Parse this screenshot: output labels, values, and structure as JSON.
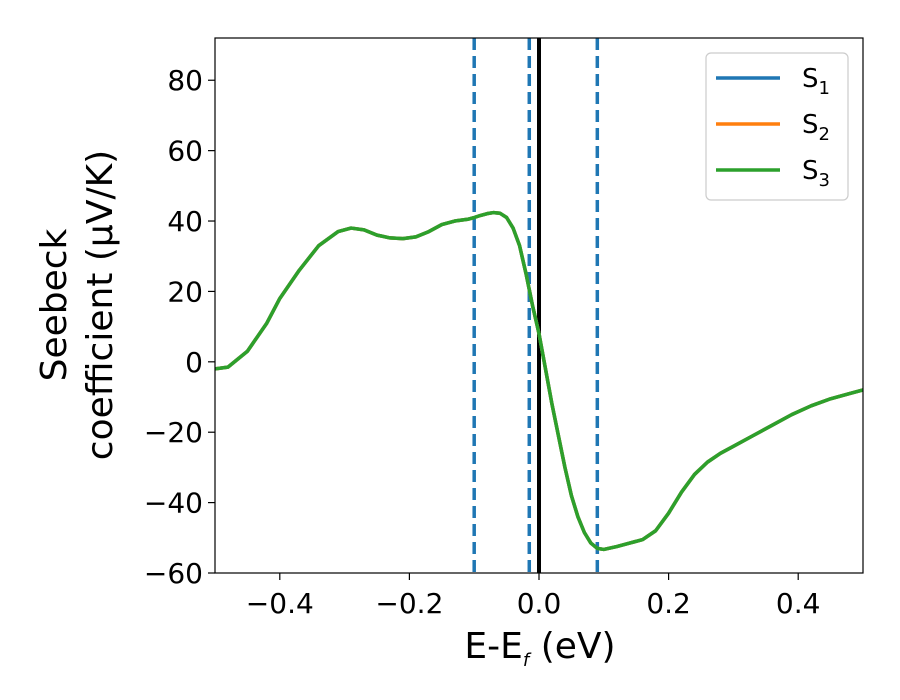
{
  "chart_data": {
    "type": "line",
    "xlabel_main": "E-E",
    "xlabel_sub": "f",
    "xlabel_unit": " (eV)",
    "ylabel_line1": "Seebeck",
    "ylabel_line2": "coefficient  (μV/K)",
    "xlim": [
      -0.5,
      0.5
    ],
    "ylim": [
      -60,
      92
    ],
    "x_ticks": [
      -0.4,
      -0.2,
      0.0,
      0.2,
      0.4
    ],
    "x_tick_labels": [
      "−0.4",
      "−0.2",
      "0.0",
      "0.2",
      "0.4"
    ],
    "y_ticks": [
      -60,
      -40,
      -20,
      0,
      20,
      40,
      60,
      80
    ],
    "y_tick_labels": [
      "−60",
      "−40",
      "−20",
      "0",
      "20",
      "40",
      "60",
      "80"
    ],
    "grid": false,
    "legend_position": "top-right",
    "series": [
      {
        "name": "S",
        "sub": "1",
        "color": "#1f77b4",
        "x": [
          -0.5,
          -0.48,
          -0.45,
          -0.42,
          -0.4,
          -0.37,
          -0.34,
          -0.31,
          -0.29,
          -0.27,
          -0.25,
          -0.23,
          -0.21,
          -0.19,
          -0.17,
          -0.15,
          -0.13,
          -0.11,
          -0.1,
          -0.09,
          -0.08,
          -0.07,
          -0.06,
          -0.05,
          -0.04,
          -0.03,
          -0.02,
          -0.01,
          0.0,
          0.01,
          0.02,
          0.03,
          0.04,
          0.05,
          0.06,
          0.07,
          0.08,
          0.09,
          0.1,
          0.12,
          0.14,
          0.16,
          0.18,
          0.2,
          0.22,
          0.24,
          0.26,
          0.28,
          0.3,
          0.33,
          0.36,
          0.39,
          0.42,
          0.45,
          0.48,
          0.5
        ],
        "y": [
          -2,
          -1.5,
          3,
          11,
          18,
          26,
          33,
          37,
          38,
          37.5,
          36,
          35.2,
          35,
          35.5,
          37,
          39,
          40,
          40.5,
          41,
          41.6,
          42.1,
          42.4,
          42.2,
          41,
          38,
          33,
          25,
          16,
          8,
          -2,
          -12,
          -21,
          -30,
          -38,
          -44,
          -48.5,
          -51.5,
          -53,
          -53.3,
          -52.5,
          -51.5,
          -50.5,
          -48,
          -43,
          -37,
          -32,
          -28.5,
          -26,
          -24,
          -21,
          -18,
          -15,
          -12.5,
          -10.5,
          -9,
          -8
        ]
      },
      {
        "name": "S",
        "sub": "2",
        "color": "#ff7f0e",
        "x": [
          -0.5,
          -0.48,
          -0.45,
          -0.42,
          -0.4,
          -0.37,
          -0.34,
          -0.31,
          -0.29,
          -0.27,
          -0.25,
          -0.23,
          -0.21,
          -0.19,
          -0.17,
          -0.15,
          -0.13,
          -0.11,
          -0.1,
          -0.09,
          -0.08,
          -0.07,
          -0.06,
          -0.05,
          -0.04,
          -0.03,
          -0.02,
          -0.01,
          0.0,
          0.01,
          0.02,
          0.03,
          0.04,
          0.05,
          0.06,
          0.07,
          0.08,
          0.09,
          0.1,
          0.12,
          0.14,
          0.16,
          0.18,
          0.2,
          0.22,
          0.24,
          0.26,
          0.28,
          0.3,
          0.33,
          0.36,
          0.39,
          0.42,
          0.45,
          0.48,
          0.5
        ],
        "y": [
          -2,
          -1.5,
          3,
          11,
          18,
          26,
          33,
          37,
          38,
          37.5,
          36,
          35.2,
          35,
          35.5,
          37,
          39,
          40,
          40.5,
          41,
          41.6,
          42.1,
          42.4,
          42.2,
          41,
          38,
          33,
          25,
          16,
          8,
          -2,
          -12,
          -21,
          -30,
          -38,
          -44,
          -48.5,
          -51.5,
          -53,
          -53.3,
          -52.5,
          -51.5,
          -50.5,
          -48,
          -43,
          -37,
          -32,
          -28.5,
          -26,
          -24,
          -21,
          -18,
          -15,
          -12.5,
          -10.5,
          -9,
          -8
        ]
      },
      {
        "name": "S",
        "sub": "3",
        "color": "#2ca02c",
        "x": [
          -0.5,
          -0.48,
          -0.45,
          -0.42,
          -0.4,
          -0.37,
          -0.34,
          -0.31,
          -0.29,
          -0.27,
          -0.25,
          -0.23,
          -0.21,
          -0.19,
          -0.17,
          -0.15,
          -0.13,
          -0.11,
          -0.1,
          -0.09,
          -0.08,
          -0.07,
          -0.06,
          -0.05,
          -0.04,
          -0.03,
          -0.02,
          -0.01,
          0.0,
          0.01,
          0.02,
          0.03,
          0.04,
          0.05,
          0.06,
          0.07,
          0.08,
          0.09,
          0.1,
          0.12,
          0.14,
          0.16,
          0.18,
          0.2,
          0.22,
          0.24,
          0.26,
          0.28,
          0.3,
          0.33,
          0.36,
          0.39,
          0.42,
          0.45,
          0.48,
          0.5
        ],
        "y": [
          -2,
          -1.5,
          3,
          11,
          18,
          26,
          33,
          37,
          38,
          37.5,
          36,
          35.2,
          35,
          35.5,
          37,
          39,
          40,
          40.5,
          41,
          41.6,
          42.1,
          42.4,
          42.2,
          41,
          38,
          33,
          25,
          16,
          8,
          -2,
          -12,
          -21,
          -30,
          -38,
          -44,
          -48.5,
          -51.5,
          -53,
          -53.3,
          -52.5,
          -51.5,
          -50.5,
          -48,
          -43,
          -37,
          -32,
          -28.5,
          -26,
          -24,
          -21,
          -18,
          -15,
          -12.5,
          -10.5,
          -9,
          -8
        ]
      }
    ],
    "vlines": [
      {
        "x": -0.1,
        "style": "dashed",
        "color": "#1f77b4"
      },
      {
        "x": -0.015,
        "style": "dashed",
        "color": "#1f77b4"
      },
      {
        "x": 0.09,
        "style": "dashed",
        "color": "#1f77b4"
      },
      {
        "x": 0.0,
        "style": "solid",
        "color": "#000000"
      }
    ]
  }
}
